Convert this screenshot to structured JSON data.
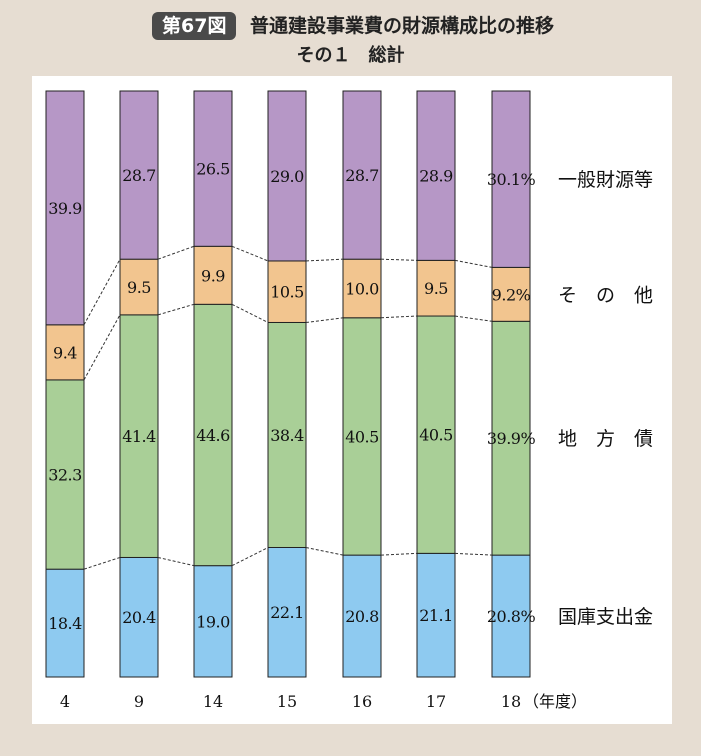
{
  "figure": {
    "badge": "第67図",
    "title": "普通建設事業費の財源構成比の推移",
    "subtitle": "その１　総計"
  },
  "chart_data": {
    "type": "bar",
    "stacked": true,
    "normalized_percent": true,
    "categories": [
      "4",
      "9",
      "14",
      "15",
      "16",
      "17",
      "18"
    ],
    "x_unit_label": "（年度）",
    "ylim": [
      0,
      100
    ],
    "grid": false,
    "legend_position": "right",
    "series": [
      {
        "name": "国庫支出金",
        "color": "#8ecaf0",
        "values": [
          18.4,
          20.4,
          19.0,
          22.1,
          20.8,
          21.1,
          20.8
        ],
        "labels": [
          "18.4",
          "20.4",
          "19.0",
          "22.1",
          "20.8",
          "21.1",
          "20.8%"
        ]
      },
      {
        "name": "地　方　債",
        "color": "#a9cf97",
        "values": [
          32.3,
          41.4,
          44.6,
          38.4,
          40.5,
          40.5,
          39.9
        ],
        "labels": [
          "32.3",
          "41.4",
          "44.6",
          "38.4",
          "40.5",
          "40.5",
          "39.9%"
        ]
      },
      {
        "name": "そ　の　他",
        "color": "#f2c58f",
        "values": [
          9.4,
          9.5,
          9.9,
          10.5,
          10.0,
          9.5,
          9.2
        ],
        "labels": [
          "9.4",
          "9.5",
          "9.9",
          "10.5",
          "10.0",
          "9.5",
          "9.2%"
        ]
      },
      {
        "name": "一般財源等",
        "color": "#b697c6",
        "values": [
          39.9,
          28.7,
          26.5,
          29.0,
          28.7,
          28.9,
          30.1
        ],
        "labels": [
          "39.9",
          "28.7",
          "26.5",
          "29.0",
          "28.7",
          "28.9",
          "30.1%"
        ]
      }
    ]
  }
}
